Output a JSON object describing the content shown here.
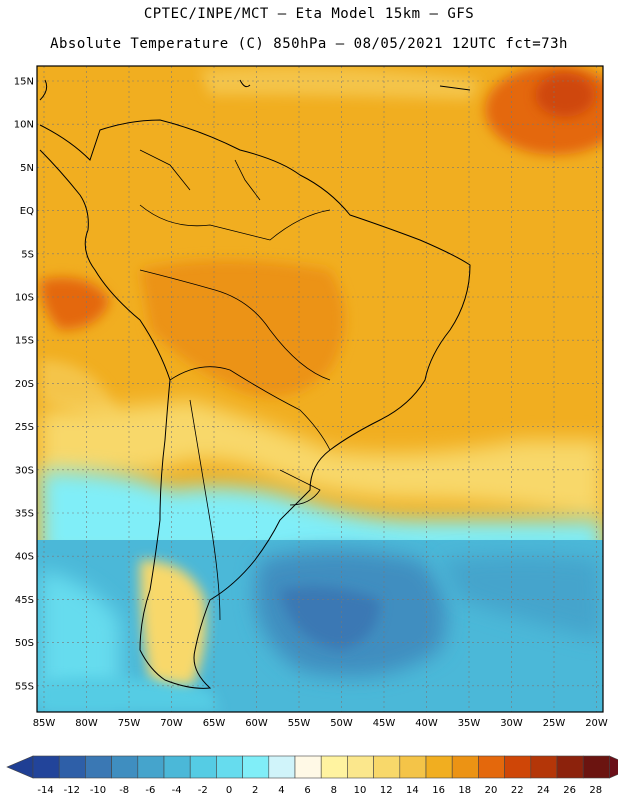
{
  "header": {
    "line1": "CPTEC/INPE/MCT –  Eta Model 15km – GFS",
    "line2": "Absolute Temperature (C) 850hPa – 08/05/2021 12UTC fct=73h"
  },
  "map": {
    "lat_labels": [
      "15N",
      "10N",
      "5N",
      "EQ",
      "5S",
      "10S",
      "15S",
      "20S",
      "25S",
      "30S",
      "35S",
      "40S",
      "45S",
      "50S",
      "55S"
    ],
    "lon_labels": [
      "85W",
      "80W",
      "75W",
      "70W",
      "65W",
      "60W",
      "55W",
      "50W",
      "45W",
      "40W",
      "35W",
      "30W",
      "25W",
      "20W"
    ]
  },
  "colorbar": {
    "labels": [
      "-14",
      "-12",
      "-10",
      "-8",
      "-6",
      "-4",
      "-2",
      "0",
      "2",
      "4",
      "6",
      "8",
      "10",
      "12",
      "14",
      "16",
      "18",
      "20",
      "22",
      "24",
      "26",
      "28"
    ],
    "colors": [
      "#22449a",
      "#2e5fa8",
      "#3a78b4",
      "#3f8ec0",
      "#45a4cc",
      "#4bb8d8",
      "#55cce4",
      "#66dcee",
      "#80eef8",
      "#d0f4fa",
      "#fff9e6",
      "#fff3a0",
      "#fbe78c",
      "#f8d86a",
      "#f4c448",
      "#f1ae20",
      "#ec9314",
      "#e4680c",
      "#cf4607",
      "#b43608",
      "#8c220c",
      "#6b1410"
    ],
    "under_color": "#1f3f94",
    "over_color": "#6b0f18"
  }
}
